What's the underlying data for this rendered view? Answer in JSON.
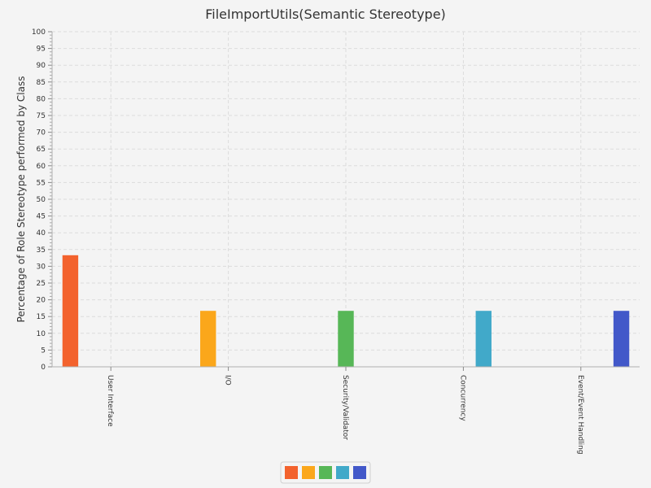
{
  "chart_data": {
    "type": "bar",
    "title": "FileImportUtils(Semantic Stereotype)",
    "xlabel": "",
    "ylabel": "Percentage of Role Stereotype performed by Class",
    "ylim": [
      0,
      100
    ],
    "ytick_step": 5,
    "grid": true,
    "legend_position": "bottom-center",
    "categories": [
      "User Interface",
      "I/O",
      "Security/Validator",
      "Concurrency",
      "Event/Event Handling"
    ],
    "series": [
      {
        "values": [
          33.3,
          0,
          0,
          0,
          0
        ],
        "color": "#f3622d"
      },
      {
        "values": [
          0,
          16.7,
          0,
          0,
          0
        ],
        "color": "#fba71b"
      },
      {
        "values": [
          0,
          0,
          16.7,
          0,
          0
        ],
        "color": "#57b757"
      },
      {
        "values": [
          0,
          0,
          0,
          16.7,
          0
        ],
        "color": "#41a9c9"
      },
      {
        "values": [
          0,
          0,
          0,
          0,
          16.7
        ],
        "color": "#4258c9"
      }
    ]
  }
}
